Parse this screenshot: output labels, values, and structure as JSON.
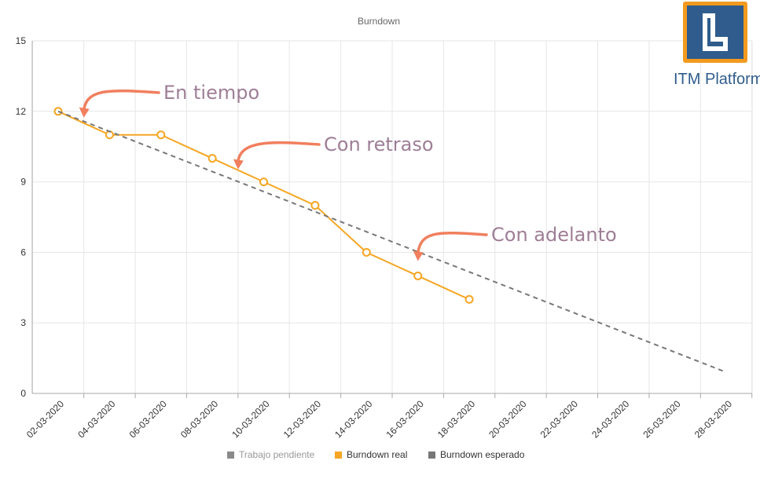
{
  "chart_data": {
    "type": "line",
    "title": "Burndown",
    "xlabel": "",
    "ylabel": "",
    "ylim": [
      0,
      15
    ],
    "yticks": [
      0,
      3,
      6,
      9,
      12,
      15
    ],
    "x_ticks": [
      "02-03-2020",
      "04-03-2020",
      "06-03-2020",
      "08-03-2020",
      "10-03-2020",
      "12-03-2020",
      "14-03-2020",
      "16-03-2020",
      "18-03-2020",
      "20-03-2020",
      "22-03-2020",
      "24-03-2020",
      "26-03-2020",
      "28-03-2020"
    ],
    "grid": true,
    "legend_position": "bottom",
    "series": [
      {
        "name": "Trabajo pendiente",
        "color": "#8a8a8a",
        "hidden": true,
        "points": []
      },
      {
        "name": "Burndown real",
        "color": "#f5a623",
        "style": "solid",
        "markers": "hollow-circle",
        "points": [
          {
            "x": "02-03-2020",
            "y": 12
          },
          {
            "x": "04-03-2020",
            "y": 11
          },
          {
            "x": "06-03-2020",
            "y": 11
          },
          {
            "x": "08-03-2020",
            "y": 10
          },
          {
            "x": "10-03-2020",
            "y": 9
          },
          {
            "x": "12-03-2020",
            "y": 8
          },
          {
            "x": "14-03-2020",
            "y": 6
          },
          {
            "x": "16-03-2020",
            "y": 5
          },
          {
            "x": "18-03-2020",
            "y": 4
          }
        ]
      },
      {
        "name": "Burndown esperado",
        "color": "#777777",
        "style": "dashed",
        "points": [
          {
            "x": "02-03-2020",
            "y": 12
          },
          {
            "x": "28-03-2020",
            "y": 0.9
          }
        ]
      }
    ],
    "annotations": [
      {
        "text": "En tiempo",
        "target": {
          "x": "03-03-2020",
          "y": 11.8
        },
        "color": "#f07f5e"
      },
      {
        "text": "Con retraso",
        "target": {
          "x": "09-03-2020",
          "y": 9.6
        },
        "color": "#f07f5e"
      },
      {
        "text": "Con adelanto",
        "target": {
          "x": "16-03-2020",
          "y": 5.7
        },
        "color": "#f07f5e"
      }
    ]
  },
  "logo": {
    "text_primary": "ITM",
    "text_secondary": "Platform",
    "border_color": "#f39a1e",
    "fill_color": "#2f5c8c"
  }
}
